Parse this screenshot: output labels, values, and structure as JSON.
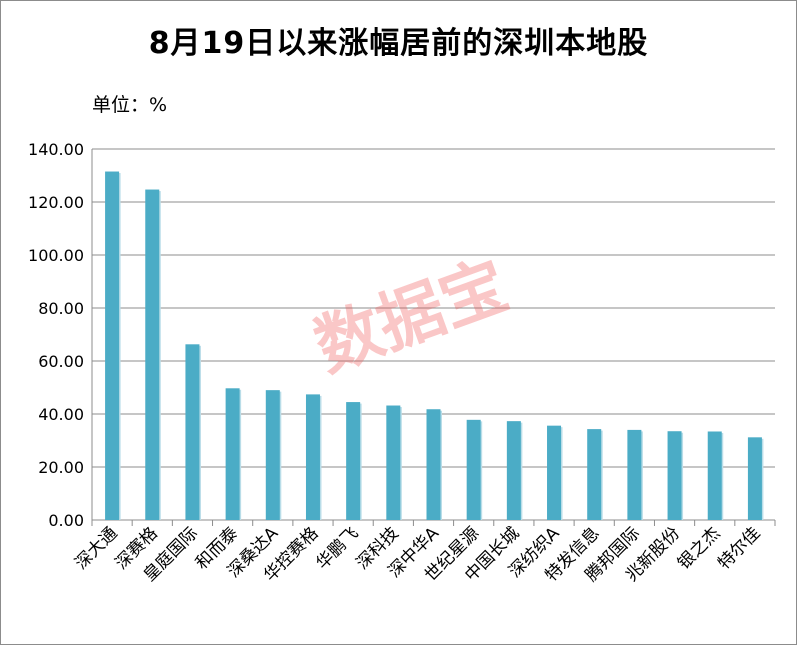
{
  "chart_data": {
    "type": "bar",
    "title": "8月19日以来涨幅居前的深圳本地股",
    "unit_label": "单位：%",
    "categories": [
      "深大通",
      "深赛格",
      "皇庭国际",
      "和而泰",
      "深桑达A",
      "华控赛格",
      "华鹏飞",
      "深科技",
      "深中华A",
      "世纪星源",
      "中国长城",
      "深纺织A",
      "特发信息",
      "腾邦国际",
      "兆新股份",
      "银之杰",
      "特尔佳"
    ],
    "values": [
      131.5,
      124.7,
      66.3,
      49.7,
      49.0,
      47.4,
      44.5,
      43.2,
      41.8,
      37.8,
      37.3,
      35.6,
      34.3,
      34.0,
      33.5,
      33.4,
      31.2
    ],
    "ylim": [
      0,
      140
    ],
    "yticks": [
      "0.00",
      "20.00",
      "40.00",
      "60.00",
      "80.00",
      "100.00",
      "120.00",
      "140.00"
    ],
    "grid": true,
    "bar_color": "#4bacc6",
    "grid_color": "#8c8c8c"
  },
  "watermark": "数据宝"
}
